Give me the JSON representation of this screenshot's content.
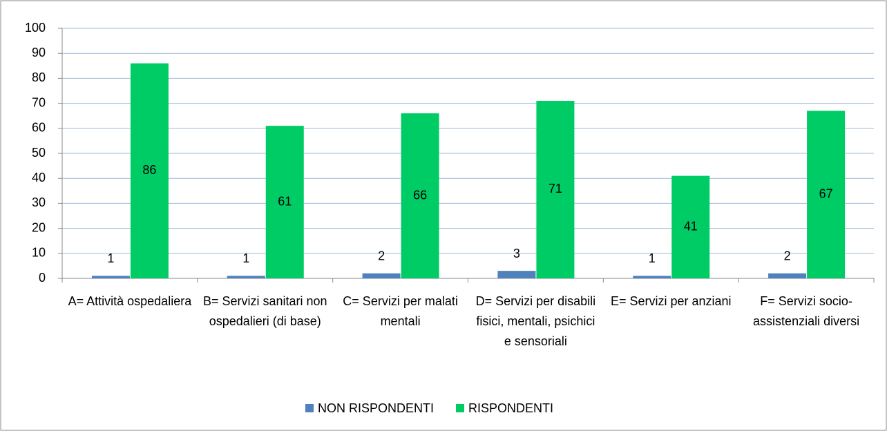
{
  "chart_data": {
    "type": "bar",
    "categories": [
      "A= Attività ospedaliera",
      "B= Servizi sanitari non ospedalieri (di base)",
      "C= Servizi per malati mentali",
      "D= Servizi per disabili fisici, mentali, psichici e sensoriali",
      "E= Servizi per anziani",
      "F= Servizi socio-assistenziali diversi"
    ],
    "series": [
      {
        "name": "NON RISPONDENTI",
        "color": "#4f81bd",
        "values": [
          1,
          1,
          2,
          3,
          1,
          2
        ]
      },
      {
        "name": "RISPONDENTI",
        "color": "#00cc66",
        "values": [
          86,
          61,
          66,
          71,
          41,
          67
        ]
      }
    ],
    "ylim": [
      0,
      100
    ],
    "yticks": [
      0,
      10,
      20,
      30,
      40,
      50,
      60,
      70,
      80,
      90,
      100
    ],
    "grid": true,
    "legend": "bottom"
  }
}
